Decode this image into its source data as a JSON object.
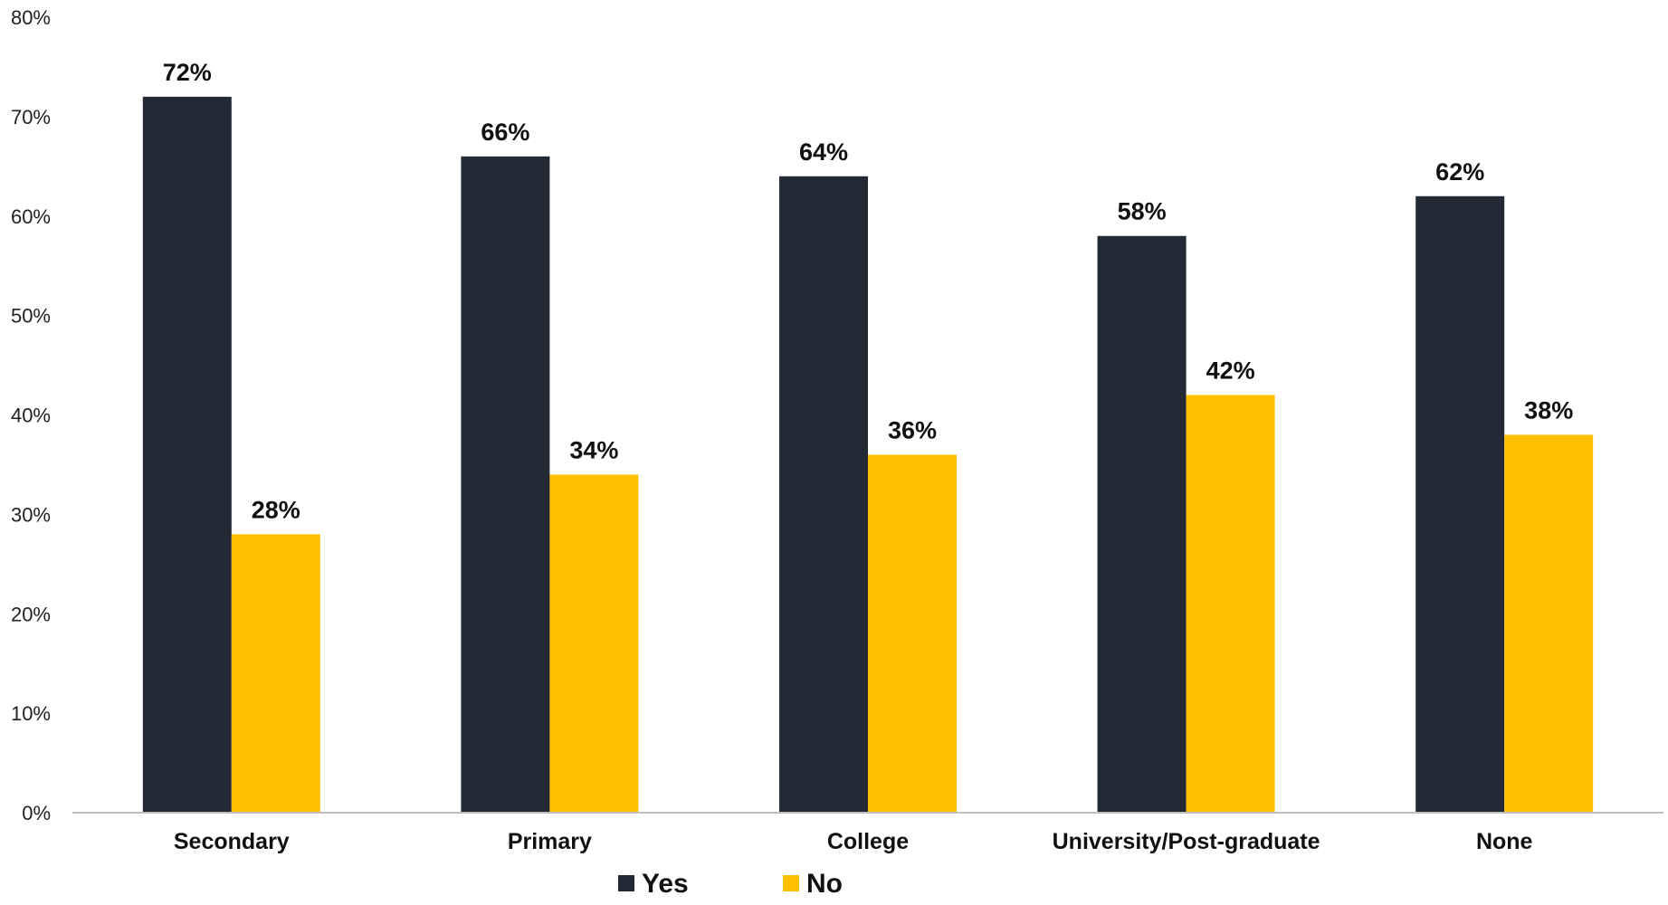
{
  "chart_data": {
    "type": "bar",
    "categories": [
      "Secondary",
      "Primary",
      "College",
      "University/Post-graduate",
      "None"
    ],
    "series": [
      {
        "name": "Yes",
        "values": [
          72,
          66,
          64,
          58,
          62
        ],
        "labels": [
          "72%",
          "66%",
          "64%",
          "58%",
          "62%"
        ],
        "color": "#232a36"
      },
      {
        "name": "No",
        "values": [
          28,
          34,
          36,
          42,
          38
        ],
        "labels": [
          "28%",
          "34%",
          "36%",
          "42%",
          "38%"
        ],
        "color": "#ffc000"
      }
    ],
    "ylim": [
      0,
      80
    ],
    "yticks": [
      0,
      10,
      20,
      30,
      40,
      50,
      60,
      70,
      80
    ],
    "ytick_labels": [
      "0%",
      "10%",
      "20%",
      "30%",
      "40%",
      "50%",
      "60%",
      "70%",
      "80%"
    ],
    "title": "",
    "xlabel": "",
    "ylabel": "",
    "grid": false,
    "legend_position": "bottom-center",
    "axis_color": "#bfbfbf"
  }
}
